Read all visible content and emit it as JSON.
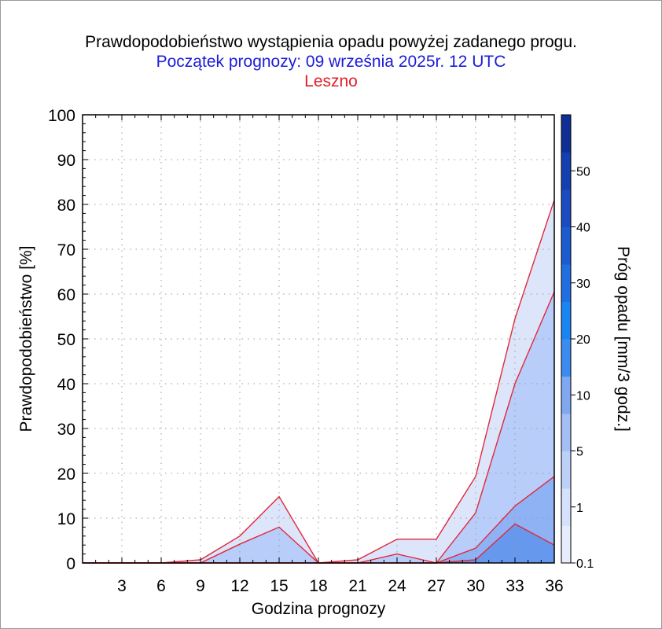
{
  "title": "Prawdopodobieństwo wystąpienia opadu powyżej zadanego progu.",
  "subtitle": "Początek prognozy: 09 września 2025r. 12 UTC",
  "station": "Leszno",
  "colors": {
    "subtitle": "#1c1cd8",
    "station": "#e0202a",
    "line": "#e0283a",
    "band_0_1": "#dde5fb",
    "band_1": "#b8cdfa",
    "band_5": "#8fb2f5",
    "band_10": "#6699ee",
    "colorbar": [
      "#e8edfd",
      "#d6e1fb",
      "#bdd0f8",
      "#a4bff5",
      "#7fa8f0",
      "#3c8cf0",
      "#1a84f2",
      "#1f6fe0",
      "#1a5cd0",
      "#1a4cc0",
      "#153fae",
      "#0f2f96"
    ]
  },
  "chart_data": {
    "type": "area",
    "xlabel": "Godzina prognozy",
    "ylabel": "Prawdopodobieństwo [%]",
    "xlim": [
      0,
      36
    ],
    "ylim": [
      0,
      100
    ],
    "x_ticks": [
      "3",
      "6",
      "9",
      "12",
      "15",
      "18",
      "21",
      "24",
      "27",
      "30",
      "33",
      "36"
    ],
    "y_ticks": [
      "0",
      "10",
      "20",
      "30",
      "40",
      "50",
      "60",
      "70",
      "80",
      "90",
      "100"
    ],
    "grid": true,
    "x": [
      0,
      3,
      6,
      9,
      12,
      15,
      18,
      21,
      24,
      27,
      30,
      33,
      36
    ],
    "series": [
      {
        "name": "0.1",
        "values": [
          0,
          0,
          0,
          0.7,
          6,
          14.8,
          0,
          0.7,
          5.3,
          5.3,
          19.3,
          54.5,
          81
        ]
      },
      {
        "name": "1",
        "values": [
          0,
          0,
          0,
          0,
          4.2,
          8,
          0,
          0,
          2,
          0,
          11.2,
          40,
          60.5
        ]
      },
      {
        "name": "5",
        "values": [
          0,
          0,
          0,
          0,
          0,
          0,
          0,
          0,
          0,
          0,
          3.3,
          12.7,
          19.3
        ]
      },
      {
        "name": "10",
        "values": [
          0,
          0,
          0,
          0,
          0,
          0,
          0,
          0,
          0,
          0,
          0.7,
          8.7,
          4
        ]
      }
    ],
    "colorbar": {
      "label": "Próg opadu [mm/3 godz.]",
      "tick_labels": [
        "0.1",
        "1",
        "5",
        "10",
        "20",
        "30",
        "40",
        "50"
      ]
    }
  }
}
